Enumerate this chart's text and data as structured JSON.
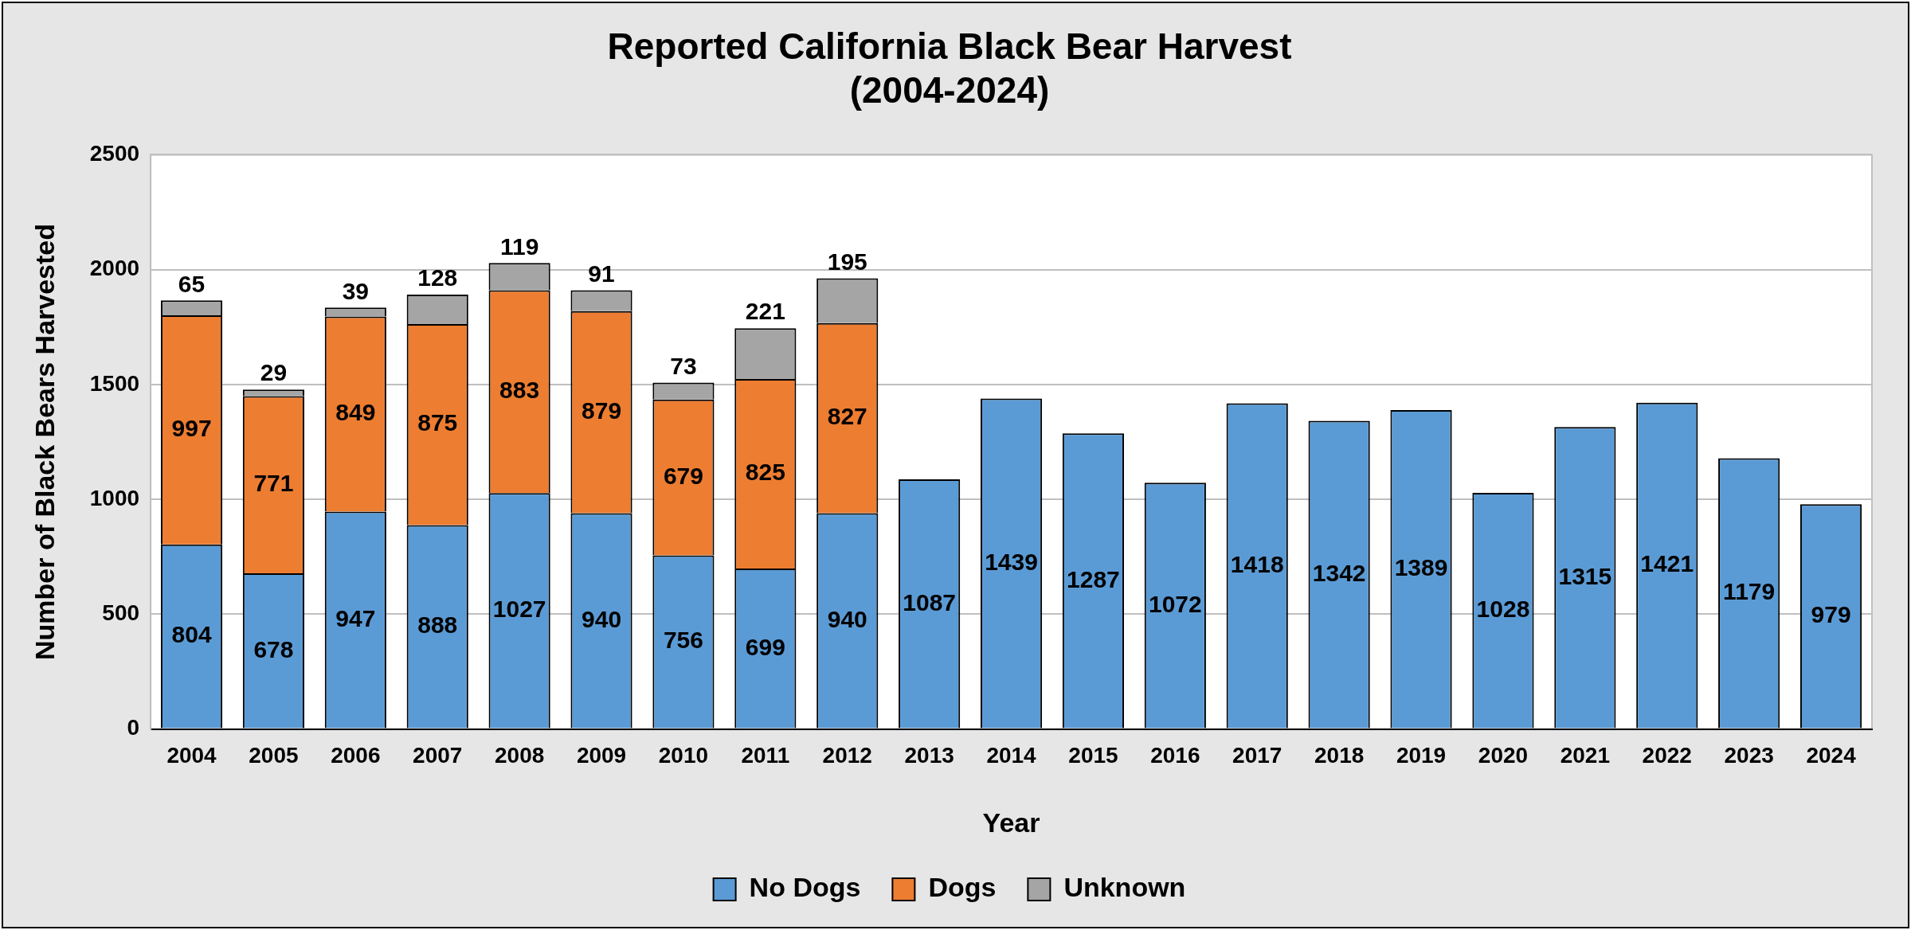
{
  "chart_data": {
    "type": "bar",
    "title": "Reported California Black Bear Harvest\n(2004-2024)",
    "xlabel": "Year",
    "ylabel": "Number of Black Bears Harvested",
    "categories": [
      "2004",
      "2005",
      "2006",
      "2007",
      "2008",
      "2009",
      "2010",
      "2011",
      "2012",
      "2013",
      "2014",
      "2015",
      "2016",
      "2017",
      "2018",
      "2019",
      "2020",
      "2021",
      "2022",
      "2023",
      "2024"
    ],
    "series": [
      {
        "name": "No Dogs",
        "color": "#5b9bd5",
        "values": [
          804,
          678,
          947,
          888,
          1027,
          940,
          756,
          699,
          940,
          1087,
          1439,
          1287,
          1072,
          1418,
          1342,
          1389,
          1028,
          1315,
          1421,
          1179,
          979
        ]
      },
      {
        "name": "Dogs",
        "color": "#ed7d31",
        "values": [
          997,
          771,
          849,
          875,
          883,
          879,
          679,
          825,
          827,
          null,
          null,
          null,
          null,
          null,
          null,
          null,
          null,
          null,
          null,
          null,
          null
        ]
      },
      {
        "name": "Unknown",
        "color": "#a5a5a5",
        "values": [
          65,
          29,
          39,
          128,
          119,
          91,
          73,
          221,
          195,
          null,
          null,
          null,
          null,
          null,
          null,
          null,
          null,
          null,
          null,
          null,
          null
        ]
      }
    ],
    "stacked": true,
    "ylim": [
      0,
      2500
    ],
    "yticks": [
      0,
      500,
      1000,
      1500,
      2000,
      2500
    ],
    "grid": "y",
    "legend": "bottom",
    "data_labels": true
  }
}
